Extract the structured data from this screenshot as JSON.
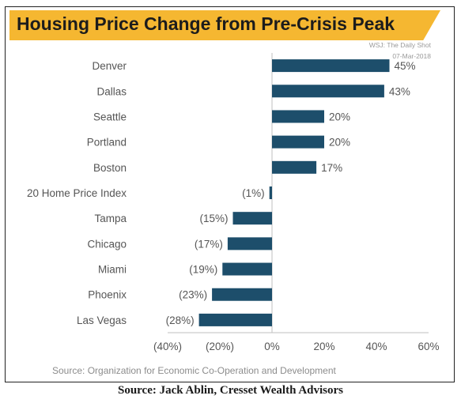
{
  "title": "Housing Price Change from Pre-Crisis Peak",
  "watermark": {
    "line1": "WSJ: The Daily Shot",
    "line2": "07-Mar-2018"
  },
  "source_note": "Source: Organization for Economic Co-Operation and Development",
  "caption": "Source: Jack Ablin, Cresset Wealth Advisors",
  "colors": {
    "banner": "#f5b731",
    "bar": "#1d4e6b",
    "axis": "#bfbfbf",
    "text": "#555555"
  },
  "chart_data": {
    "type": "bar",
    "orientation": "horizontal",
    "categories": [
      "Denver",
      "Dallas",
      "Seattle",
      "Portland",
      "Boston",
      "20 Home Price Index",
      "Tampa",
      "Chicago",
      "Miami",
      "Phoenix",
      "Las Vegas"
    ],
    "values": [
      45,
      43,
      20,
      20,
      17,
      -1,
      -15,
      -17,
      -19,
      -23,
      -28
    ],
    "data_labels": [
      "45%",
      "43%",
      "20%",
      "20%",
      "17%",
      "(1%)",
      "(15%)",
      "(17%)",
      "(19%)",
      "(23%)",
      "(28%)"
    ],
    "xlim": [
      -40,
      60
    ],
    "xticks": [
      -40,
      -20,
      0,
      20,
      40,
      60
    ],
    "xtick_labels": [
      "(40%)",
      "(20%)",
      "0%",
      "20%",
      "40%",
      "60%"
    ],
    "grid": false,
    "legend": "none"
  }
}
